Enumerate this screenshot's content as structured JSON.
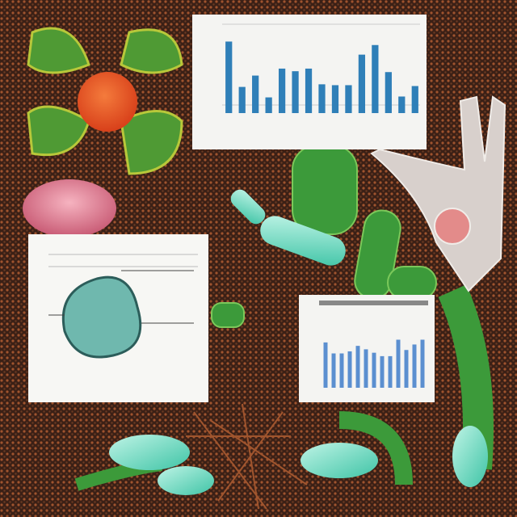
{
  "chart_data": [
    {
      "type": "bar",
      "color": "#2f7fb8",
      "ylim": [
        0,
        100
      ],
      "values": [
        82,
        30,
        43,
        18,
        51,
        48,
        51,
        33,
        32,
        32,
        67,
        78,
        47,
        19,
        31
      ]
    },
    {
      "type": "bar",
      "color": "#5b8fd0",
      "ylim": [
        0,
        100
      ],
      "values": [
        66,
        50,
        50,
        53,
        61,
        56,
        51,
        46,
        46,
        70,
        55,
        63,
        70
      ]
    }
  ]
}
